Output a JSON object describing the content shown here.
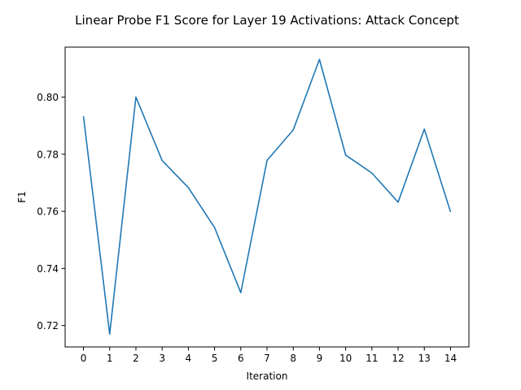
{
  "chart_data": {
    "type": "line",
    "title": "Linear Probe F1 Score for Layer 19 Activations: Attack Concept",
    "xlabel": "Iteration",
    "ylabel": "F1",
    "x": [
      0,
      1,
      2,
      3,
      4,
      5,
      6,
      7,
      8,
      9,
      10,
      11,
      12,
      13,
      14
    ],
    "xticks": [
      "0",
      "1",
      "2",
      "3",
      "4",
      "5",
      "6",
      "7",
      "8",
      "9",
      "10",
      "11",
      "12",
      "13",
      "14"
    ],
    "yticks": [
      0.72,
      0.74,
      0.76,
      0.78,
      0.8
    ],
    "ytick_labels": [
      "0.72",
      "0.74",
      "0.76",
      "0.78",
      "0.80"
    ],
    "xlim": [
      -0.7,
      14.7
    ],
    "ylim": [
      0.7125,
      0.8175
    ],
    "grid": false,
    "series": [
      {
        "color": "#1f77b4",
        "values": [
          0.7933,
          0.717,
          0.8,
          0.7778,
          0.7683,
          0.7543,
          0.7315,
          0.7778,
          0.7885,
          0.8132,
          0.7797,
          0.7734,
          0.7632,
          0.7888,
          0.7598
        ]
      }
    ]
  }
}
